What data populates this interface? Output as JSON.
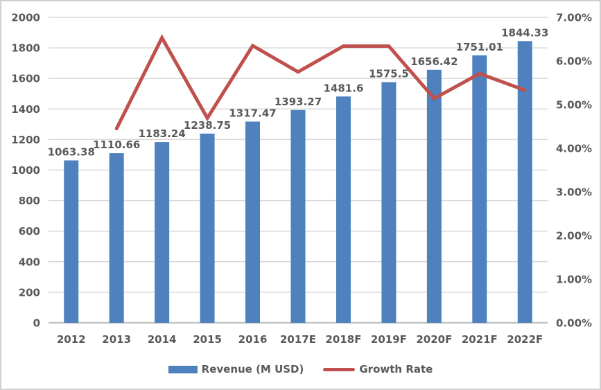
{
  "chart_data": {
    "type": "combo",
    "subtypes": [
      "bar",
      "line"
    ],
    "categories": [
      "2012",
      "2013",
      "2014",
      "2015",
      "2016",
      "2017E",
      "2018F",
      "2019F",
      "2020F",
      "2021F",
      "2022F"
    ],
    "series": [
      {
        "name": "Revenue (M USD)",
        "type": "bar",
        "axis": "left",
        "values": [
          1063.38,
          1110.66,
          1183.24,
          1238.75,
          1317.47,
          1393.27,
          1481.6,
          1575.5,
          1656.42,
          1751.01,
          1844.33
        ],
        "data_labels": [
          "1063.38",
          "1110.66",
          "1183.24",
          "1238.75",
          "1317.47",
          "1393.27",
          "1481.6",
          "1575.5",
          "1656.42",
          "1751.01",
          "1844.33"
        ]
      },
      {
        "name": "Growth Rate",
        "type": "line",
        "axis": "right",
        "values_percent": [
          null,
          4.45,
          6.53,
          4.69,
          6.35,
          5.75,
          6.34,
          6.34,
          5.14,
          5.71,
          5.33
        ]
      }
    ],
    "left_axis": {
      "min": 0,
      "max": 2000,
      "step": 200,
      "tick_labels": [
        "2000",
        "1800",
        "1600",
        "1400",
        "1200",
        "1000",
        "800",
        "600",
        "400",
        "200",
        "0"
      ]
    },
    "right_axis": {
      "min": 0,
      "max": 7,
      "step": 1,
      "tick_labels": [
        "7.00%",
        "6.00%",
        "5.00%",
        "4.00%",
        "3.00%",
        "2.00%",
        "1.00%",
        "0.00%"
      ]
    },
    "grid": true,
    "legend_position": "bottom"
  },
  "colors": {
    "bar": "#4E81BD",
    "line": "#C0504D",
    "gridline": "#D9D9D9",
    "axis_line": "#C3C3C3",
    "text": "#595959",
    "border": "#D2D0CE",
    "background": "#FFFFFF"
  }
}
